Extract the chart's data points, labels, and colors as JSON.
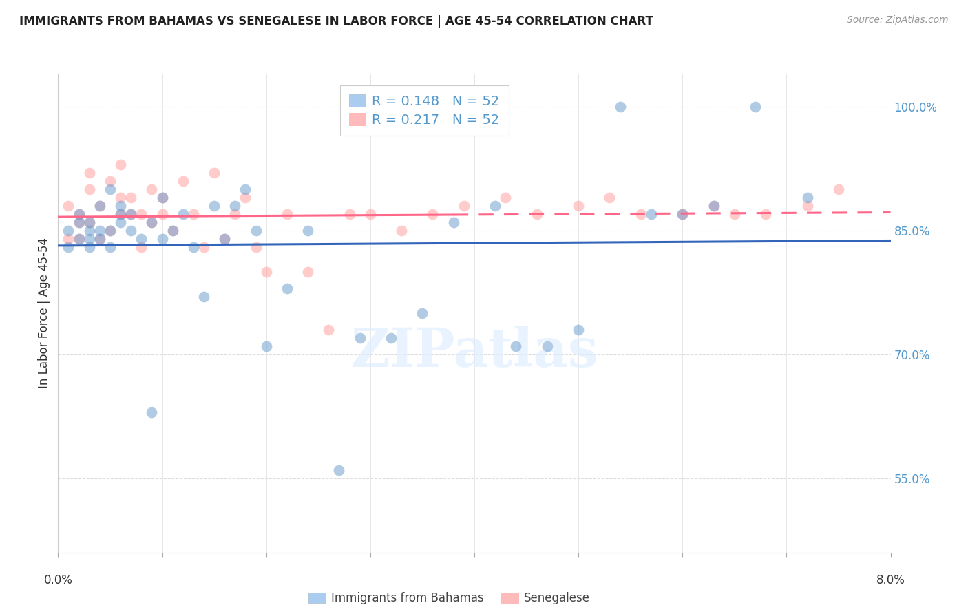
{
  "title": "IMMIGRANTS FROM BAHAMAS VS SENEGALESE IN LABOR FORCE | AGE 45-54 CORRELATION CHART",
  "source": "Source: ZipAtlas.com",
  "ylabel": "In Labor Force | Age 45-54",
  "xmin": 0.0,
  "xmax": 0.08,
  "ymin": 0.46,
  "ymax": 1.04,
  "r_bahamas": 0.148,
  "n_bahamas": 52,
  "r_senegalese": 0.217,
  "n_senegalese": 52,
  "color_bahamas": "#6699CC",
  "color_senegalese": "#FF9999",
  "line_color_bahamas": "#3366BB",
  "line_color_senegalese": "#FF6688",
  "legend_color_bahamas": "#AACCEE",
  "legend_color_senegalese": "#FFBBBB",
  "right_tick_color": "#5599CC",
  "grid_color": "#DDDDDD",
  "bahamas_x": [
    0.001,
    0.001,
    0.002,
    0.002,
    0.002,
    0.003,
    0.003,
    0.003,
    0.003,
    0.004,
    0.004,
    0.004,
    0.005,
    0.005,
    0.005,
    0.006,
    0.006,
    0.006,
    0.007,
    0.007,
    0.008,
    0.009,
    0.009,
    0.01,
    0.01,
    0.011,
    0.012,
    0.013,
    0.014,
    0.015,
    0.016,
    0.017,
    0.018,
    0.019,
    0.02,
    0.022,
    0.024,
    0.027,
    0.029,
    0.032,
    0.035,
    0.038,
    0.042,
    0.044,
    0.047,
    0.05,
    0.054,
    0.057,
    0.06,
    0.063,
    0.067,
    0.072
  ],
  "bahamas_y": [
    0.83,
    0.85,
    0.84,
    0.86,
    0.87,
    0.85,
    0.84,
    0.83,
    0.86,
    0.84,
    0.85,
    0.88,
    0.83,
    0.85,
    0.9,
    0.86,
    0.87,
    0.88,
    0.85,
    0.87,
    0.84,
    0.63,
    0.86,
    0.84,
    0.89,
    0.85,
    0.87,
    0.83,
    0.77,
    0.88,
    0.84,
    0.88,
    0.9,
    0.85,
    0.71,
    0.78,
    0.85,
    0.56,
    0.72,
    0.72,
    0.75,
    0.86,
    0.88,
    0.71,
    0.71,
    0.73,
    1.0,
    0.87,
    0.87,
    0.88,
    1.0,
    0.89
  ],
  "senegalese_x": [
    0.001,
    0.001,
    0.002,
    0.002,
    0.002,
    0.003,
    0.003,
    0.003,
    0.004,
    0.004,
    0.005,
    0.005,
    0.006,
    0.006,
    0.006,
    0.007,
    0.007,
    0.008,
    0.008,
    0.009,
    0.009,
    0.01,
    0.01,
    0.011,
    0.012,
    0.013,
    0.014,
    0.015,
    0.016,
    0.017,
    0.018,
    0.019,
    0.02,
    0.022,
    0.024,
    0.026,
    0.028,
    0.03,
    0.033,
    0.036,
    0.039,
    0.043,
    0.046,
    0.05,
    0.053,
    0.056,
    0.06,
    0.063,
    0.065,
    0.068,
    0.072,
    0.075
  ],
  "senegalese_y": [
    0.84,
    0.88,
    0.84,
    0.86,
    0.87,
    0.86,
    0.9,
    0.92,
    0.84,
    0.88,
    0.85,
    0.91,
    0.87,
    0.89,
    0.93,
    0.87,
    0.89,
    0.83,
    0.87,
    0.86,
    0.9,
    0.87,
    0.89,
    0.85,
    0.91,
    0.87,
    0.83,
    0.92,
    0.84,
    0.87,
    0.89,
    0.83,
    0.8,
    0.87,
    0.8,
    0.73,
    0.87,
    0.87,
    0.85,
    0.87,
    0.88,
    0.89,
    0.87,
    0.88,
    0.89,
    0.87,
    0.87,
    0.88,
    0.87,
    0.87,
    0.88,
    0.9
  ],
  "ytick_vals": [
    0.55,
    0.7,
    0.85,
    1.0
  ],
  "ytick_labels": [
    "55.0%",
    "70.0%",
    "85.0%",
    "100.0%"
  ]
}
